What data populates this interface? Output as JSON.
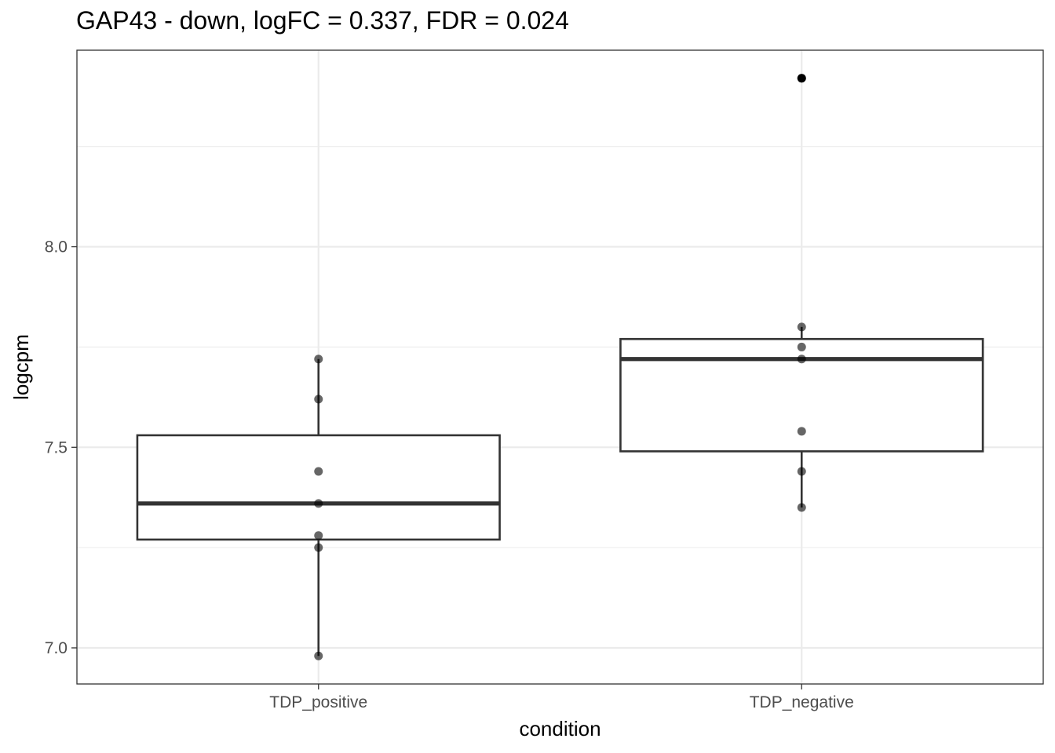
{
  "chart_data": {
    "type": "box",
    "title": "GAP43 - down, logFC = 0.337, FDR = 0.024",
    "xlabel": "condition",
    "ylabel": "logcpm",
    "categories": [
      "TDP_positive",
      "TDP_negative"
    ],
    "ylim": [
      6.91,
      8.49
    ],
    "yticks": [
      7.0,
      7.5,
      8.0
    ],
    "ytick_labels": [
      "7.0",
      "7.5",
      "8.0"
    ],
    "grid": true,
    "boxes": [
      {
        "category": "TDP_positive",
        "lower_whisker": 6.98,
        "q1": 7.27,
        "median": 7.36,
        "q3": 7.53,
        "upper_whisker": 7.72,
        "outliers": []
      },
      {
        "category": "TDP_negative",
        "lower_whisker": 7.35,
        "q1": 7.49,
        "median": 7.72,
        "q3": 7.77,
        "upper_whisker": 7.8,
        "outliers": [
          8.42
        ]
      }
    ],
    "points": [
      {
        "category": "TDP_positive",
        "values": [
          7.72,
          7.62,
          7.44,
          7.36,
          7.28,
          7.25,
          6.98
        ]
      },
      {
        "category": "TDP_negative",
        "values": [
          8.42,
          7.8,
          7.75,
          7.72,
          7.54,
          7.44,
          7.35
        ]
      }
    ],
    "colors": {
      "box_line": "#333333",
      "point": "#000000",
      "grid": "#ebebeb",
      "panel_border": "#333333"
    }
  }
}
